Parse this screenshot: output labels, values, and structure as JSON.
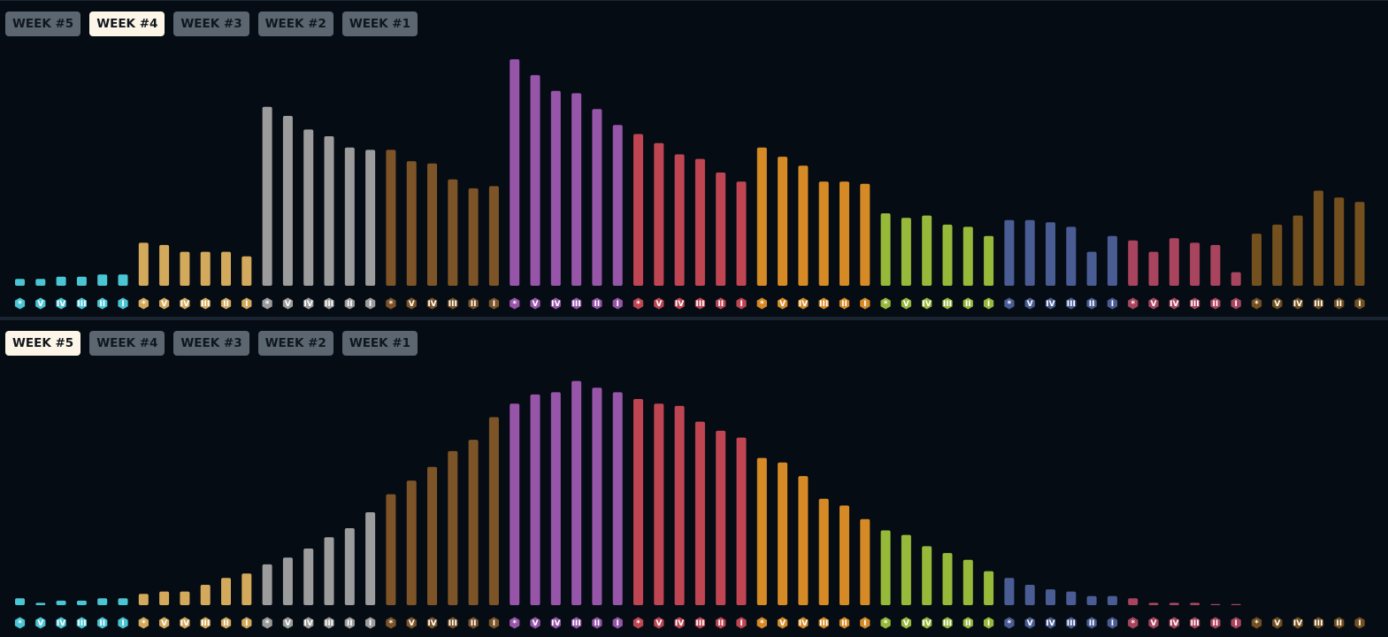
{
  "tabs": [
    "WEEK #5",
    "WEEK #4",
    "WEEK #3",
    "WEEK #2",
    "WEEK #1"
  ],
  "rank_tiers": [
    {
      "name": "cyan",
      "color": "#4ac5d4",
      "icon": "cyan-rank-badge"
    },
    {
      "name": "gold",
      "color": "#d3a95b",
      "icon": "gold-rank-badge"
    },
    {
      "name": "silver",
      "color": "#9c9c9c",
      "icon": "silver-rank-badge"
    },
    {
      "name": "bronze",
      "color": "#7d5428",
      "icon": "bronze-rank-badge"
    },
    {
      "name": "purple",
      "color": "#9655a9",
      "icon": "purple-rank-badge"
    },
    {
      "name": "red",
      "color": "#bf4553",
      "icon": "red-rank-badge"
    },
    {
      "name": "orange",
      "color": "#d68a25",
      "icon": "orange-rank-badge"
    },
    {
      "name": "green",
      "color": "#97b93a",
      "icon": "green-rank-badge"
    },
    {
      "name": "blue",
      "color": "#4a5c94",
      "icon": "blue-rank-badge"
    },
    {
      "name": "rose",
      "color": "#a8445d",
      "icon": "rose-rank-badge"
    },
    {
      "name": "brown",
      "color": "#74501f",
      "icon": "brown-rank-badge"
    }
  ],
  "rank_sublabels": [
    "*",
    "V",
    "IV",
    "III",
    "II",
    "I"
  ],
  "chart_data": [
    {
      "type": "bar",
      "active_tab": "WEEK #4",
      "grid": false,
      "ylim": [
        0,
        100
      ],
      "values": [
        3,
        3,
        4,
        4,
        5,
        5,
        19,
        18,
        15,
        15,
        15,
        13,
        79,
        75,
        69,
        66,
        61,
        60,
        60,
        55,
        54,
        47,
        43,
        44,
        100,
        93,
        86,
        85,
        78,
        71,
        67,
        63,
        58,
        56,
        50,
        46,
        61,
        57,
        53,
        46,
        46,
        45,
        32,
        30,
        31,
        27,
        26,
        22,
        29,
        29,
        28,
        26,
        15,
        22,
        20,
        15,
        21,
        19,
        18,
        6,
        23,
        27,
        31,
        42,
        39,
        37
      ]
    },
    {
      "type": "bar",
      "active_tab": "WEEK #5",
      "grid": false,
      "ylim": [
        0,
        100
      ],
      "values": [
        3,
        1,
        2,
        2,
        3,
        3,
        5,
        6,
        6,
        9,
        12,
        14,
        18,
        21,
        25,
        30,
        34,
        41,
        49,
        55,
        61,
        68,
        73,
        83,
        89,
        93,
        94,
        99,
        96,
        94,
        91,
        89,
        88,
        81,
        77,
        74,
        65,
        63,
        57,
        47,
        44,
        38,
        33,
        31,
        26,
        23,
        20,
        15,
        12,
        9,
        7,
        6,
        4,
        4,
        3,
        1,
        1,
        1,
        0.5,
        0.5,
        0,
        0,
        0,
        0,
        0,
        0
      ]
    }
  ]
}
